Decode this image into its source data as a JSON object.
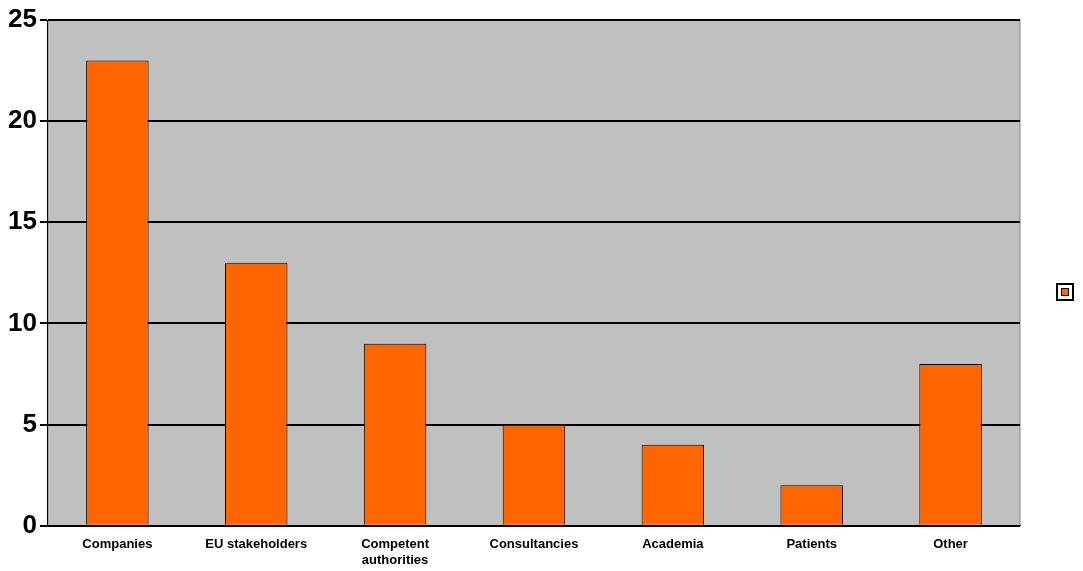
{
  "chart_data": {
    "type": "bar",
    "categories": [
      "Companies",
      "EU stakeholders",
      "Competent authorities",
      "Consultancies",
      "Academia",
      "Patients",
      "Other"
    ],
    "series": [
      {
        "color": "#ff6600",
        "values": [
          23,
          13,
          9,
          5,
          4,
          2,
          8
        ]
      }
    ],
    "ylim": [
      0,
      25
    ],
    "yticks": [
      0,
      5,
      10,
      15,
      20,
      25
    ],
    "grid": "y"
  }
}
